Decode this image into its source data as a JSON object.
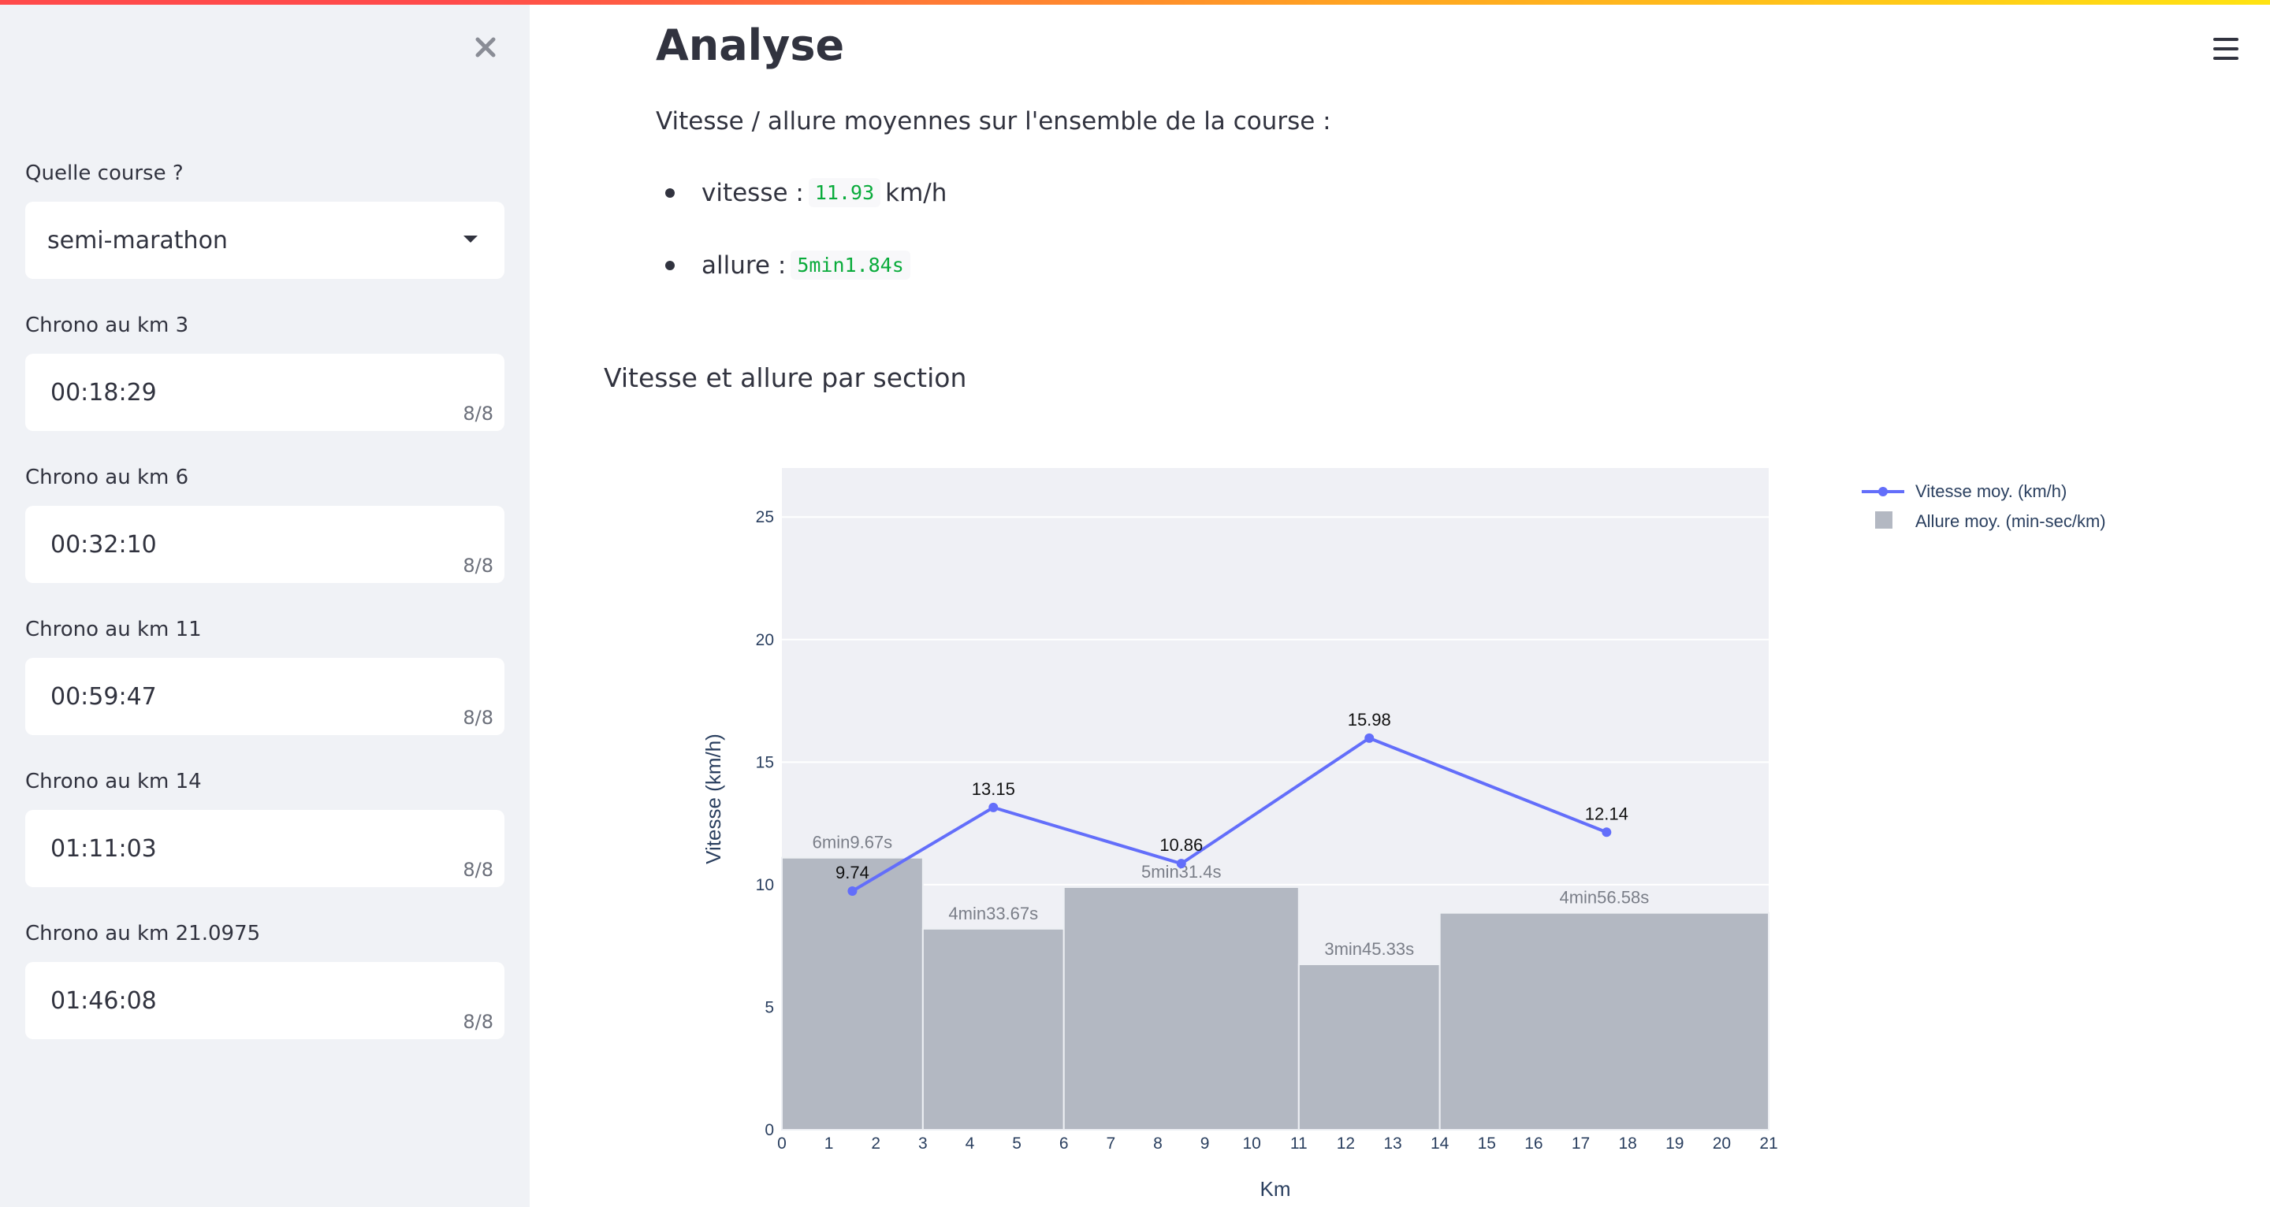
{
  "sidebar": {
    "race_label": "Quelle course ?",
    "race_value": "semi-marathon",
    "fields": [
      {
        "label": "Chrono au km 3",
        "value": "00:18:29",
        "counter": "8/8"
      },
      {
        "label": "Chrono au km 6",
        "value": "00:32:10",
        "counter": "8/8"
      },
      {
        "label": "Chrono au km 11",
        "value": "00:59:47",
        "counter": "8/8"
      },
      {
        "label": "Chrono au km 14",
        "value": "01:11:03",
        "counter": "8/8"
      },
      {
        "label": "Chrono au km 21.0975",
        "value": "01:46:08",
        "counter": "8/8"
      }
    ]
  },
  "main": {
    "title": "Analyse",
    "intro": "Vitesse / allure moyennes sur l'ensemble de la course :",
    "speed_label": "vitesse :",
    "speed_value": "11.93",
    "speed_unit": "km/h",
    "pace_label": "allure :",
    "pace_value": "5min1.84s"
  },
  "icons": {
    "close": "close-icon",
    "menu": "hamburger-menu-icon",
    "dropdown": "chevron-down-icon"
  },
  "colors": {
    "line": "#636efa",
    "bars": "#b3b8c2",
    "plot_bg": "#eff0f5",
    "code": "#09ab3b"
  },
  "chart_data": {
    "type": "bar+line",
    "title": "Vitesse et allure par section",
    "xlabel": "Km",
    "ylabel": "Vitesse (km/h)",
    "xlim": [
      0,
      21
    ],
    "ylim": [
      0,
      27
    ],
    "yticks": [
      0,
      5,
      10,
      15,
      20,
      25
    ],
    "xticks": [
      0,
      1,
      2,
      3,
      4,
      5,
      6,
      7,
      8,
      9,
      10,
      11,
      12,
      13,
      14,
      15,
      16,
      17,
      18,
      19,
      20,
      21
    ],
    "grid": true,
    "legend_position": "top-right",
    "series": [
      {
        "name": "Vitesse moy. (km/h)",
        "type": "line",
        "x": [
          1.5,
          4.5,
          8.5,
          12.5,
          17.55
        ],
        "y": [
          9.74,
          13.15,
          10.86,
          15.98,
          12.14
        ],
        "labels": [
          "9.74",
          "13.15",
          "10.86",
          "15.98",
          "12.14"
        ]
      },
      {
        "name": "Allure moy. (min-sec/km)",
        "type": "bar",
        "x_start": [
          0,
          3,
          6,
          11,
          14
        ],
        "x_end": [
          3,
          6,
          11,
          14,
          21.0975
        ],
        "values": [
          11.1,
          8.2,
          9.9,
          6.75,
          8.85
        ],
        "labels": [
          "6min9.67s",
          "4min33.67s",
          "5min31.4s",
          "3min45.33s",
          "4min56.58s"
        ]
      }
    ]
  }
}
